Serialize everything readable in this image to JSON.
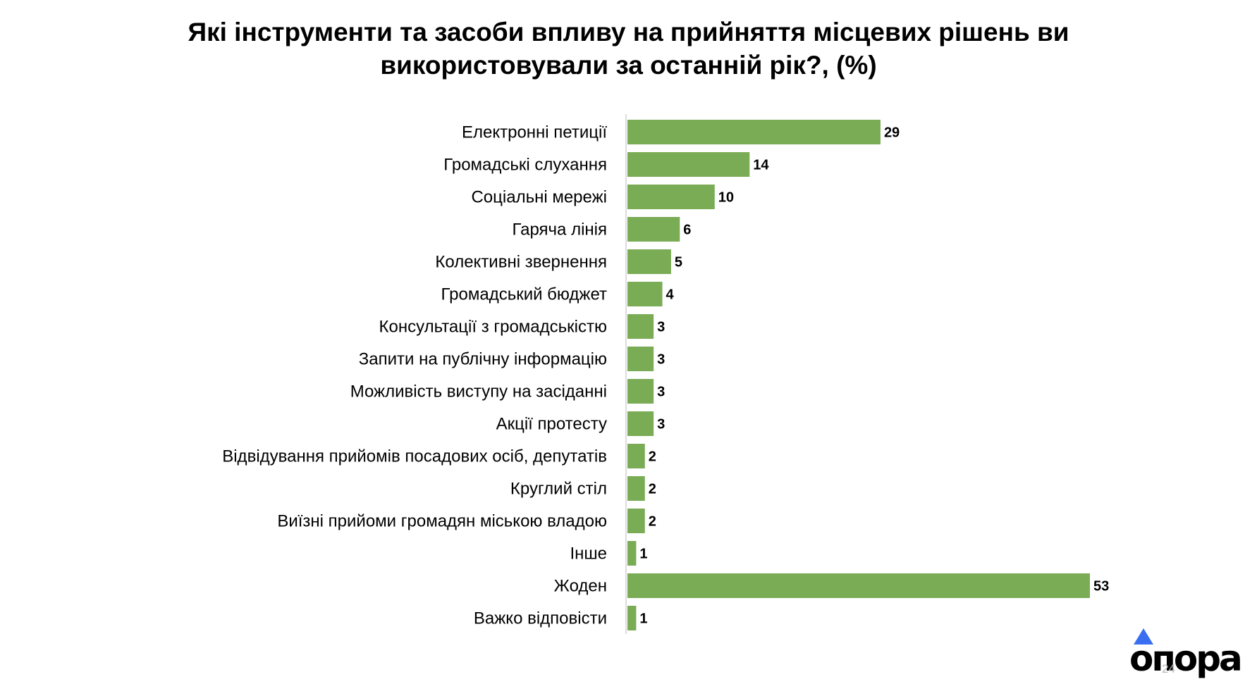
{
  "title": "Які інструменти та засоби впливу на прийняття місцевих рішень ви\nвикористовували за останній рік?, (%)",
  "chart_data": {
    "type": "bar",
    "orientation": "horizontal",
    "title": "Які інструменти та засоби впливу на прийняття місцевих рішень ви використовували за останній рік?, (%)",
    "categories": [
      "Електронні петиції",
      "Громадські слухання",
      "Соціальні мережі",
      "Гаряча лінія",
      "Колективні звернення",
      "Громадський бюджет",
      "Консультації з громадськістю",
      "Запити на публічну інформацію",
      "Можливість виступу на засіданні",
      "Акції протесту",
      "Відвідування прийомів посадових осіб, депутатів",
      "Круглий стіл",
      "Виїзні прийоми громадян міською владою",
      "Інше",
      "Жоден",
      "Важко відповісти"
    ],
    "values": [
      29,
      14,
      10,
      6,
      5,
      4,
      3,
      3,
      3,
      3,
      2,
      2,
      2,
      1,
      53,
      1
    ],
    "xlim": [
      0,
      53
    ],
    "grid": false,
    "legend": "none",
    "bar_color": "#7aab55",
    "axis_color": "#d0d0d0"
  },
  "logo": {
    "text": "опора",
    "accent_color": "#3a6ef0"
  },
  "page_number": "24"
}
